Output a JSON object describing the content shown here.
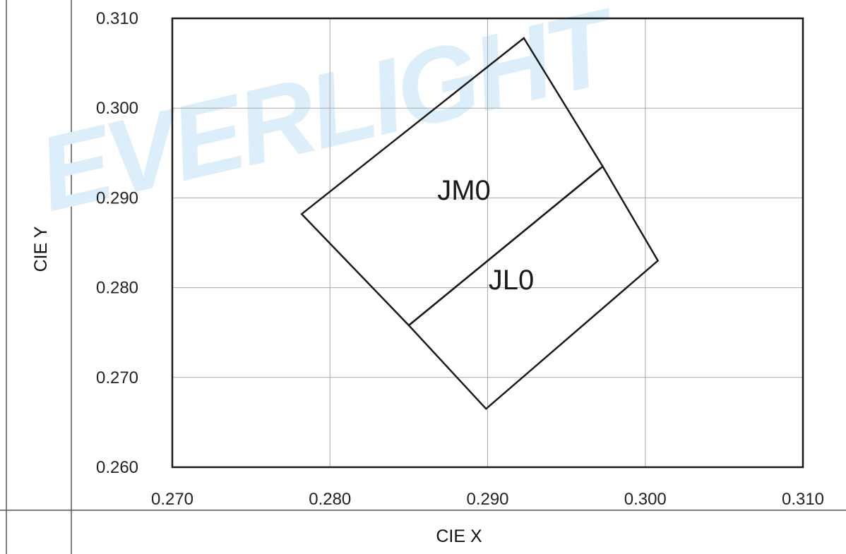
{
  "watermark": {
    "text": "EVERLIGHT",
    "color": "#dbeefa"
  },
  "chart_data": {
    "type": "line",
    "xlabel": "CIE X",
    "ylabel": "CIE Y",
    "xlim": [
      0.27,
      0.31
    ],
    "ylim": [
      0.26,
      0.31
    ],
    "x_ticks": [
      "0.270",
      "0.280",
      "0.290",
      "0.300",
      "0.310"
    ],
    "y_ticks": [
      "0.260",
      "0.270",
      "0.280",
      "0.290",
      "0.300",
      "0.310"
    ],
    "grid": true,
    "regions": [
      {
        "name": "JM0",
        "points": [
          [
            0.2782,
            0.2882
          ],
          [
            0.2923,
            0.3078
          ],
          [
            0.2973,
            0.2935
          ],
          [
            0.285,
            0.2758
          ]
        ],
        "label_at": [
          0.2885,
          0.2898
        ]
      },
      {
        "name": "JL0",
        "points": [
          [
            0.285,
            0.2758
          ],
          [
            0.2973,
            0.2935
          ],
          [
            0.3008,
            0.283
          ],
          [
            0.2899,
            0.2665
          ]
        ],
        "label_at": [
          0.2915,
          0.2798
        ]
      }
    ],
    "colors": {
      "outline": "#1a1a1a",
      "grid": "#aaaaaa",
      "table_border": "#555555"
    }
  }
}
